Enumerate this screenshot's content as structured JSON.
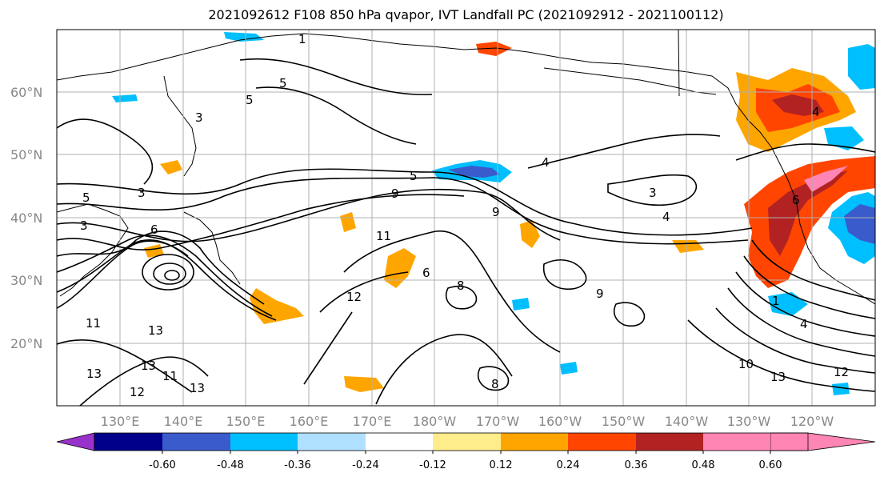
{
  "title": "2021092612 F108 850 hPa qvapor, IVT Landfall PC (2021092912 - 2021100112)",
  "latitude_labels": [
    "60°N",
    "50°N",
    "40°N",
    "30°N",
    "20°N"
  ],
  "longitude_labels": [
    "130°E",
    "140°E",
    "150°E",
    "160°E",
    "170°E",
    "180°W",
    "170°W",
    "160°W",
    "150°W",
    "140°W",
    "130°W",
    "120°W"
  ],
  "colorbar": {
    "colors": [
      "#9932cc",
      "#00008b",
      "#3a5bcb",
      "#00bfff",
      "#b0e0ff",
      "#ffffff",
      "#ffec8b",
      "#ffa500",
      "#ff4500",
      "#b22222",
      "#ff85b4"
    ],
    "tick_labels": [
      "-0.60",
      "-0.48",
      "-0.36",
      "-0.24",
      "-0.12",
      "0.12",
      "0.24",
      "0.36",
      "0.48",
      "0.60"
    ]
  },
  "contour_labels": [
    "1",
    "1",
    "3",
    "3",
    "3",
    "3",
    "4",
    "4",
    "4",
    "4",
    "5",
    "5",
    "5",
    "5",
    "6",
    "6",
    "6",
    "8",
    "8",
    "9",
    "9",
    "9",
    "10",
    "11",
    "11",
    "11",
    "12",
    "12",
    "12",
    "13",
    "13",
    "13",
    "13",
    "13"
  ]
}
